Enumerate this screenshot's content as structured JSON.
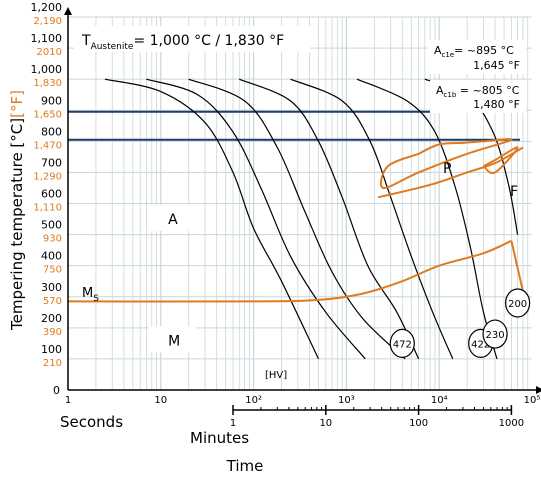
{
  "colors": {
    "axis": "#000000",
    "grid": "#c9d6da",
    "curve": "#000000",
    "transformation": "#e07a1f",
    "critical_line": "#1f3a6b",
    "fahrenheit": "#e07a1f",
    "label_bg": "#ffffff"
  },
  "chart_data": {
    "type": "line",
    "title": "",
    "xlabel": "Time",
    "ylabel": {
      "prefix": "Tempering temperature ",
      "celsius": "[°C]",
      "fahrenheit": "[°F]"
    },
    "x_scale": "log",
    "x_unit_labels": {
      "seconds": "Seconds",
      "minutes": "Minutes"
    },
    "xlim_seconds": [
      1,
      100000
    ],
    "x_ticks_seconds": [
      {
        "value": 1,
        "label": "1"
      },
      {
        "value": 10,
        "label": "10"
      },
      {
        "value": 100,
        "label": "10²"
      },
      {
        "value": 1000,
        "label": "10³"
      },
      {
        "value": 10000,
        "label": "10⁴"
      },
      {
        "value": 100000,
        "label": "10⁵"
      }
    ],
    "x_ticks_minutes": [
      {
        "value": 1,
        "label": "1"
      },
      {
        "value": 10,
        "label": "10"
      },
      {
        "value": 100,
        "label": "100"
      },
      {
        "value": 1000,
        "label": "1000"
      }
    ],
    "ylim": [
      0,
      1200
    ],
    "y_ticks": [
      {
        "c": 0,
        "c_label": "0",
        "f_label": ""
      },
      {
        "c": 100,
        "c_label": "100",
        "f_label": "210"
      },
      {
        "c": 200,
        "c_label": "200",
        "f_label": "390"
      },
      {
        "c": 300,
        "c_label": "300",
        "f_label": "570"
      },
      {
        "c": 400,
        "c_label": "400",
        "f_label": "750"
      },
      {
        "c": 500,
        "c_label": "500",
        "f_label": "930"
      },
      {
        "c": 600,
        "c_label": "600",
        "f_label": "1,110"
      },
      {
        "c": 700,
        "c_label": "700",
        "f_label": "1,290"
      },
      {
        "c": 800,
        "c_label": "800",
        "f_label": "1,470"
      },
      {
        "c": 900,
        "c_label": "900",
        "f_label": "1,650"
      },
      {
        "c": 1000,
        "c_label": "1,000",
        "f_label": "1,830"
      },
      {
        "c": 1100,
        "c_label": "1,100",
        "f_label": "2010"
      },
      {
        "c": 1200,
        "c_label": "1,200",
        "f_label": "2,190"
      }
    ],
    "grid": true,
    "austenitizing": {
      "text_prefix": "T",
      "text_sub": "Austenite",
      "text_value": "= 1,000 °C / 1,830 °F"
    },
    "ac1e": {
      "label_main": "A",
      "label_sub": "c1e",
      "label_value": "= ~895 °C",
      "label_f": "1,645 °F",
      "y": 895
    },
    "ac1b": {
      "label_main": "A",
      "label_sub": "c1b",
      "label_value": " = ~805 °C",
      "label_f": "1,480 °F",
      "y": 805
    },
    "cooling_curves": [
      [
        [
          2.5,
          1000
        ],
        [
          10,
          960
        ],
        [
          30,
          860
        ],
        [
          60,
          700
        ],
        [
          100,
          520
        ],
        [
          200,
          350
        ],
        [
          500,
          100
        ]
      ],
      [
        [
          7,
          1000
        ],
        [
          25,
          950
        ],
        [
          60,
          830
        ],
        [
          120,
          650
        ],
        [
          250,
          430
        ],
        [
          600,
          250
        ],
        [
          1600,
          100
        ]
      ],
      [
        [
          20,
          1000
        ],
        [
          80,
          930
        ],
        [
          180,
          780
        ],
        [
          350,
          580
        ],
        [
          700,
          380
        ],
        [
          1500,
          230
        ],
        [
          4300,
          100
        ]
      ],
      [
        [
          70,
          1000
        ],
        [
          250,
          930
        ],
        [
          500,
          800
        ],
        [
          900,
          620
        ],
        [
          1700,
          400
        ],
        [
          3500,
          250
        ],
        [
          6000,
          100
        ]
      ],
      [
        [
          250,
          1000
        ],
        [
          900,
          930
        ],
        [
          1800,
          800
        ],
        [
          3000,
          620
        ],
        [
          5000,
          430
        ],
        [
          8500,
          250
        ],
        [
          14000,
          100
        ]
      ],
      [
        [
          1300,
          1000
        ],
        [
          4500,
          930
        ],
        [
          9000,
          830
        ],
        [
          15000,
          650
        ],
        [
          22000,
          450
        ],
        [
          30000,
          250
        ],
        [
          42000,
          100
        ]
      ],
      [
        [
          7000,
          1000
        ],
        [
          20000,
          950
        ],
        [
          38000,
          830
        ],
        [
          56000,
          660
        ],
        [
          70000,
          500
        ]
      ]
    ],
    "hardness_labels": [
      {
        "text": "472",
        "x": 4000,
        "y": 150
      },
      {
        "text": "422",
        "x": 28000,
        "y": 150
      },
      {
        "text": "230",
        "x": 40000,
        "y": 180
      },
      {
        "text": "200",
        "x": 70000,
        "y": 280
      }
    ],
    "hardness_unit": "[HV]",
    "pearlite_region": [
      [
        6000,
        760
      ],
      [
        10000,
        790
      ],
      [
        18000,
        795
      ],
      [
        30000,
        800
      ],
      [
        60000,
        805
      ],
      [
        20000,
        760
      ],
      [
        6000,
        700
      ],
      [
        2500,
        650
      ],
      [
        2800,
        720
      ],
      [
        6000,
        760
      ]
    ],
    "ferrite_region": [
      [
        30000,
        720
      ],
      [
        40000,
        700
      ],
      [
        70000,
        780
      ],
      [
        40000,
        740
      ],
      [
        30000,
        720
      ]
    ],
    "pearlite_lower": [
      [
        2200,
        620
      ],
      [
        8000,
        660
      ],
      [
        20000,
        700
      ],
      [
        40000,
        730
      ],
      [
        80000,
        780
      ]
    ],
    "ms_curve": [
      [
        1,
        285
      ],
      [
        100,
        285
      ],
      [
        500,
        290
      ],
      [
        1500,
        310
      ],
      [
        4000,
        350
      ],
      [
        10000,
        400
      ],
      [
        30000,
        440
      ],
      [
        60000,
        480
      ],
      [
        90000,
        250
      ]
    ],
    "regions": [
      {
        "text": "A",
        "x": 12,
        "y": 550
      },
      {
        "text": "P",
        "x": 11000,
        "y": 715
      },
      {
        "text": "F",
        "x": 58000,
        "y": 640
      },
      {
        "text": "M",
        "x": 12,
        "y": 160
      }
    ],
    "ms_label": {
      "main": "M",
      "sub": "S"
    }
  }
}
